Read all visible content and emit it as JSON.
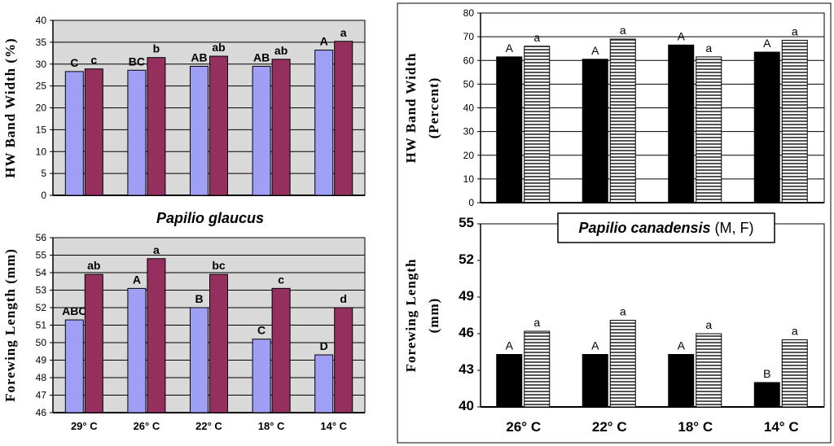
{
  "colors": {
    "male_glaucus": "#9f9ff5",
    "female_glaucus": "#95305e",
    "male_canadensis": "#000000",
    "female_canadensis": "#ffffff",
    "plot_bg_left": "#d9d9d9",
    "grid": "#000000"
  },
  "titles": {
    "glaucus": "Papilio  glaucus",
    "canadensis_name": "Papilio  canadensis",
    "canadensis_suffix": " (M, F)"
  },
  "chart_data": [
    {
      "id": "glaucus_hw",
      "type": "bar",
      "ylabel": "HW Band Width (%)",
      "ylim": [
        0,
        40
      ],
      "yticks": [
        "0",
        "5",
        "10",
        "15",
        "20",
        "25",
        "30",
        "35",
        "40"
      ],
      "categories": [
        "29° C",
        "26° C",
        "22° C",
        "18° C",
        "14° C"
      ],
      "series": [
        {
          "name": "M",
          "values": [
            28.3,
            28.6,
            29.5,
            29.5,
            33.2
          ],
          "letters": [
            "C",
            "BC",
            "AB",
            "AB",
            "A"
          ]
        },
        {
          "name": "F",
          "values": [
            28.9,
            31.5,
            31.8,
            31.1,
            35.2
          ],
          "letters": [
            "c",
            "b",
            "ab",
            "ab",
            "a"
          ]
        }
      ]
    },
    {
      "id": "glaucus_fw",
      "type": "bar",
      "ylabel": "Forewing Length (mm)",
      "ylim": [
        46,
        56
      ],
      "yticks": [
        "46",
        "47",
        "48",
        "49",
        "50",
        "51",
        "52",
        "53",
        "54",
        "55",
        "56"
      ],
      "categories": [
        "29° C",
        "26° C",
        "22° C",
        "18° C",
        "14° C"
      ],
      "series": [
        {
          "name": "M",
          "values": [
            51.3,
            53.1,
            52.0,
            50.2,
            49.3
          ],
          "letters": [
            "ABC",
            "A",
            "B",
            "C",
            "D"
          ]
        },
        {
          "name": "F",
          "values": [
            53.9,
            54.8,
            53.9,
            53.1,
            52.0
          ],
          "letters": [
            "ab",
            "a",
            "bc",
            "c",
            "d"
          ]
        }
      ]
    },
    {
      "id": "canadensis_hw",
      "type": "bar",
      "ylabel_line1": "HW  Band Width",
      "ylabel_line2": "(Percent)",
      "ylim": [
        0,
        80
      ],
      "yticks": [
        "0",
        "10",
        "20",
        "30",
        "40",
        "50",
        "60",
        "70",
        "80"
      ],
      "categories": [
        "26° C",
        "22° C",
        "18° C",
        "14° C"
      ],
      "series": [
        {
          "name": "M",
          "values": [
            61.5,
            60.5,
            66.5,
            63.5
          ],
          "letters": [
            "A",
            "A",
            "A",
            "A"
          ]
        },
        {
          "name": "F",
          "values": [
            66.0,
            69.0,
            61.5,
            68.5
          ],
          "letters": [
            "a",
            "a",
            "a",
            "a"
          ]
        }
      ]
    },
    {
      "id": "canadensis_fw",
      "type": "bar",
      "ylabel_line1": "Forewing   Length",
      "ylabel_line2": "(mm)",
      "ylim": [
        40,
        55
      ],
      "yticks": [
        "40",
        "43",
        "46",
        "49",
        "52",
        "55"
      ],
      "categories": [
        "26° C",
        "22° C",
        "18° C",
        "14° C"
      ],
      "series": [
        {
          "name": "M",
          "values": [
            44.3,
            44.3,
            44.3,
            42.0
          ],
          "letters": [
            "A",
            "A",
            "A",
            "B"
          ]
        },
        {
          "name": "F",
          "values": [
            46.2,
            47.1,
            46.0,
            45.5
          ],
          "letters": [
            "a",
            "a",
            "a",
            "a"
          ]
        }
      ]
    }
  ]
}
